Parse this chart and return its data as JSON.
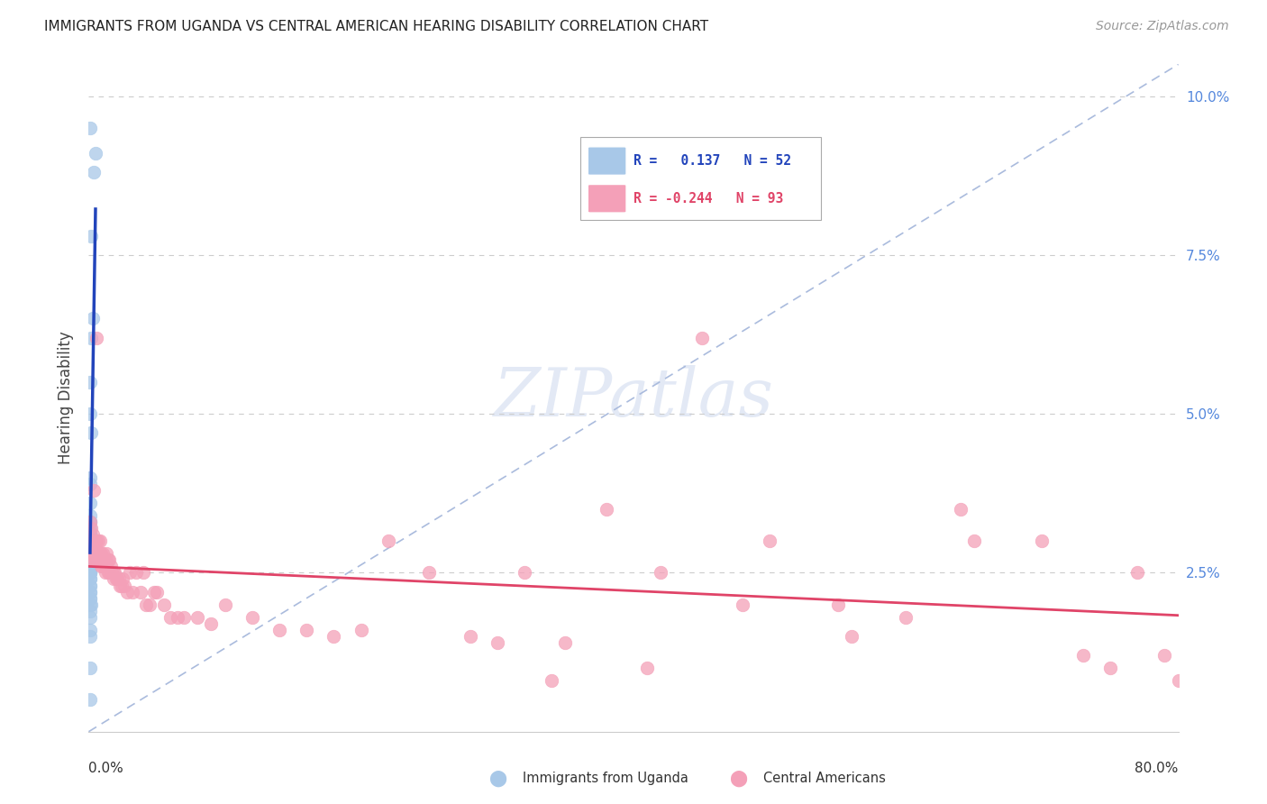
{
  "title": "IMMIGRANTS FROM UGANDA VS CENTRAL AMERICAN HEARING DISABILITY CORRELATION CHART",
  "source": "Source: ZipAtlas.com",
  "ylabel": "Hearing Disability",
  "right_yticks": [
    0.0,
    0.025,
    0.05,
    0.075,
    0.1
  ],
  "right_yticklabels": [
    "",
    "2.5%",
    "5.0%",
    "7.5%",
    "10.0%"
  ],
  "xmin": 0.0,
  "xmax": 0.8,
  "ymin": 0.0,
  "ymax": 0.105,
  "uganda_color": "#a8c8e8",
  "central_color": "#f4a0b8",
  "uganda_line_color": "#2244bb",
  "central_line_color": "#e04468",
  "diag_color": "#aabbdd",
  "uganda_x": [
    0.001,
    0.004,
    0.005,
    0.002,
    0.003,
    0.002,
    0.001,
    0.001,
    0.002,
    0.001,
    0.001,
    0.001,
    0.001,
    0.001,
    0.001,
    0.001,
    0.001,
    0.001,
    0.001,
    0.001,
    0.001,
    0.001,
    0.001,
    0.001,
    0.002,
    0.002,
    0.003,
    0.003,
    0.001,
    0.002,
    0.001,
    0.001,
    0.001,
    0.001,
    0.001,
    0.001,
    0.001,
    0.001,
    0.001,
    0.001,
    0.001,
    0.001,
    0.001,
    0.001,
    0.001,
    0.002,
    0.001,
    0.001,
    0.001,
    0.001,
    0.001,
    0.001
  ],
  "uganda_y": [
    0.095,
    0.088,
    0.091,
    0.078,
    0.065,
    0.062,
    0.055,
    0.05,
    0.047,
    0.04,
    0.039,
    0.036,
    0.034,
    0.033,
    0.033,
    0.032,
    0.031,
    0.031,
    0.03,
    0.03,
    0.03,
    0.029,
    0.029,
    0.028,
    0.028,
    0.028,
    0.028,
    0.027,
    0.027,
    0.027,
    0.026,
    0.025,
    0.025,
    0.025,
    0.025,
    0.025,
    0.024,
    0.024,
    0.023,
    0.023,
    0.022,
    0.022,
    0.021,
    0.021,
    0.02,
    0.02,
    0.019,
    0.018,
    0.016,
    0.015,
    0.01,
    0.005
  ],
  "central_x": [
    0.001,
    0.001,
    0.001,
    0.002,
    0.002,
    0.003,
    0.003,
    0.003,
    0.004,
    0.004,
    0.004,
    0.004,
    0.005,
    0.005,
    0.005,
    0.006,
    0.006,
    0.007,
    0.007,
    0.008,
    0.008,
    0.009,
    0.009,
    0.01,
    0.01,
    0.01,
    0.011,
    0.012,
    0.012,
    0.013,
    0.013,
    0.014,
    0.014,
    0.015,
    0.015,
    0.016,
    0.017,
    0.018,
    0.018,
    0.019,
    0.02,
    0.021,
    0.022,
    0.023,
    0.024,
    0.025,
    0.026,
    0.028,
    0.03,
    0.032,
    0.035,
    0.038,
    0.04,
    0.042,
    0.045,
    0.048,
    0.05,
    0.055,
    0.06,
    0.065,
    0.07,
    0.08,
    0.09,
    0.1,
    0.12,
    0.14,
    0.16,
    0.18,
    0.2,
    0.22,
    0.25,
    0.28,
    0.3,
    0.32,
    0.35,
    0.38,
    0.42,
    0.45,
    0.5,
    0.55,
    0.6,
    0.65,
    0.7,
    0.73,
    0.75,
    0.77,
    0.79,
    0.8,
    0.64,
    0.56,
    0.48,
    0.41,
    0.34
  ],
  "central_y": [
    0.033,
    0.028,
    0.03,
    0.032,
    0.029,
    0.031,
    0.028,
    0.027,
    0.038,
    0.03,
    0.028,
    0.027,
    0.03,
    0.028,
    0.027,
    0.062,
    0.03,
    0.03,
    0.028,
    0.03,
    0.028,
    0.028,
    0.026,
    0.028,
    0.027,
    0.026,
    0.027,
    0.027,
    0.025,
    0.028,
    0.026,
    0.027,
    0.025,
    0.027,
    0.025,
    0.026,
    0.025,
    0.025,
    0.024,
    0.025,
    0.024,
    0.024,
    0.024,
    0.023,
    0.023,
    0.024,
    0.023,
    0.022,
    0.025,
    0.022,
    0.025,
    0.022,
    0.025,
    0.02,
    0.02,
    0.022,
    0.022,
    0.02,
    0.018,
    0.018,
    0.018,
    0.018,
    0.017,
    0.02,
    0.018,
    0.016,
    0.016,
    0.015,
    0.016,
    0.03,
    0.025,
    0.015,
    0.014,
    0.025,
    0.014,
    0.035,
    0.025,
    0.062,
    0.03,
    0.02,
    0.018,
    0.03,
    0.03,
    0.012,
    0.01,
    0.025,
    0.012,
    0.008,
    0.035,
    0.015,
    0.02,
    0.01,
    0.008
  ]
}
